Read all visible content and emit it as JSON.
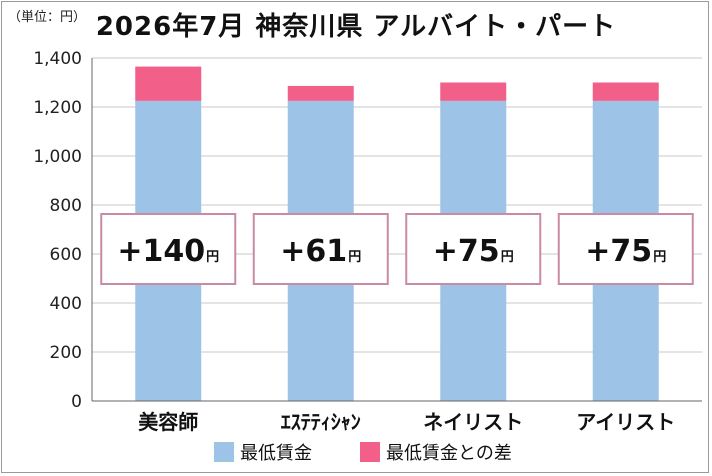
{
  "unit_label": "（単位：円）",
  "chart_data": {
    "type": "bar",
    "stacked": true,
    "title": "2026年7月 神奈川県 アルバイト・パート",
    "categories": [
      "美容師",
      "ｴｽﾃﾃｨｼｬﾝ",
      "ネイリスト",
      "アイリスト"
    ],
    "series": [
      {
        "name": "最低賃金",
        "color": "#9dc3e6",
        "values": [
          1225,
          1225,
          1225,
          1225
        ]
      },
      {
        "name": "最低賃金との差",
        "color": "#f2608a",
        "values": [
          140,
          61,
          75,
          75
        ]
      }
    ],
    "difference_labels": [
      "+140",
      "+61",
      "+75",
      "+75"
    ],
    "difference_unit": "円",
    "ylim": [
      0,
      1400
    ],
    "yticks": [
      0,
      200,
      400,
      600,
      800,
      1000,
      1200,
      1400
    ],
    "ytick_labels": [
      "0",
      "200",
      "400",
      "600",
      "800",
      "1,000",
      "1,200",
      "1,400"
    ],
    "grid": true,
    "legend_position": "bottom"
  }
}
